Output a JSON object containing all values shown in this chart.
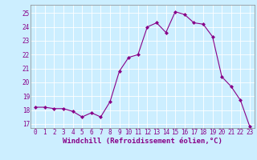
{
  "x": [
    0,
    1,
    2,
    3,
    4,
    5,
    6,
    7,
    8,
    9,
    10,
    11,
    12,
    13,
    14,
    15,
    16,
    17,
    18,
    19,
    20,
    21,
    22,
    23
  ],
  "y": [
    18.2,
    18.2,
    18.1,
    18.1,
    17.9,
    17.5,
    17.8,
    17.5,
    18.6,
    20.8,
    21.8,
    22.0,
    24.0,
    24.3,
    23.6,
    25.1,
    24.9,
    24.3,
    24.2,
    23.3,
    20.4,
    19.7,
    18.7,
    16.8
  ],
  "xlim": [
    -0.5,
    23.5
  ],
  "ylim": [
    16.7,
    25.6
  ],
  "yticks": [
    17,
    18,
    19,
    20,
    21,
    22,
    23,
    24,
    25
  ],
  "xticks": [
    0,
    1,
    2,
    3,
    4,
    5,
    6,
    7,
    8,
    9,
    10,
    11,
    12,
    13,
    14,
    15,
    16,
    17,
    18,
    19,
    20,
    21,
    22,
    23
  ],
  "xlabel": "Windchill (Refroidissement éolien,°C)",
  "line_color": "#880088",
  "marker": "D",
  "marker_size": 2.0,
  "bg_color": "#cceeff",
  "grid_color": "#ffffff",
  "tick_label_fontsize": 5.5,
  "xlabel_fontsize": 6.5,
  "spine_color": "#888888"
}
